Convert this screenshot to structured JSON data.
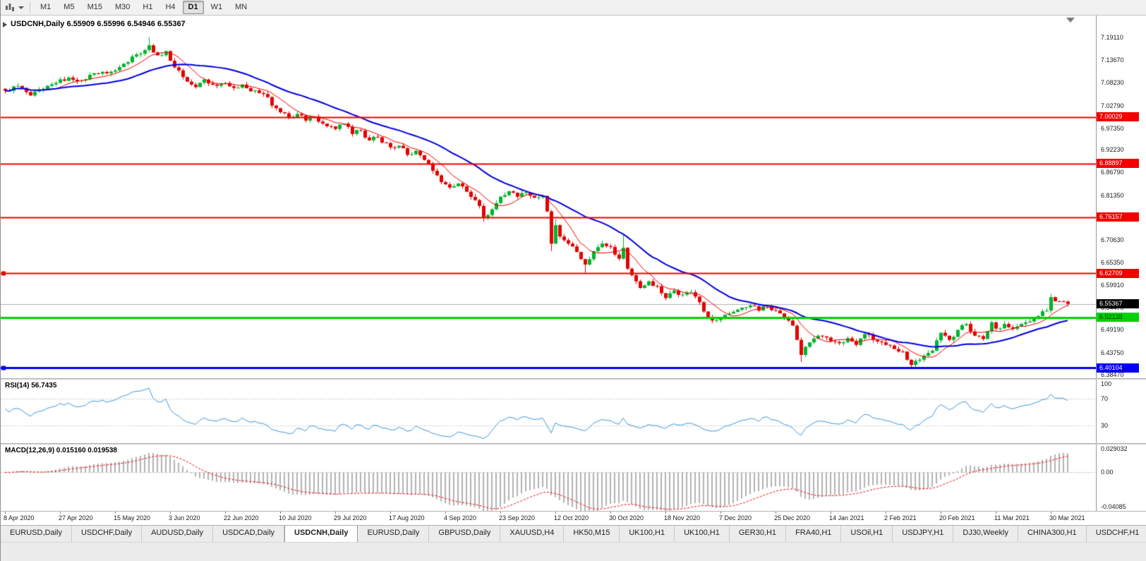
{
  "toolbar": {
    "timeframes": [
      "M1",
      "M5",
      "M15",
      "M30",
      "H1",
      "H4",
      "D1",
      "W1",
      "MN"
    ],
    "active_timeframe": "D1"
  },
  "chart": {
    "symbol_line": "USDCNH,Daily  6.55909 6.55996 6.54946 6.55367",
    "symbol": "USDCNH",
    "period": "Daily",
    "open": "6.55909",
    "high": "6.55996",
    "low": "6.54946",
    "close": "6.55367"
  },
  "indicators": {
    "rsi": {
      "label": "RSI(14) 56.7435",
      "name": "RSI",
      "period": 14,
      "value": "56.7435",
      "levels": [
        100,
        70,
        30
      ],
      "axis_labels": [
        "100",
        "70",
        "30"
      ],
      "line_color": "#3c9bdc"
    },
    "macd": {
      "label": "MACD(12,26,9) 0.015160 0.019538",
      "name": "MACD",
      "params": "12,26,9",
      "values": [
        "0.015160",
        "0.019538"
      ],
      "axis_labels": [
        "0.029032",
        "0.00",
        "-0.04085"
      ],
      "axis_values": [
        0.029032,
        0,
        -0.04085
      ],
      "hist_color": "#b2b2b2",
      "signal_color": "#ee1111"
    }
  },
  "chart_data": {
    "type": "candlestick",
    "symbol": "USDCNH",
    "timeframe": "Daily",
    "num_candles": 252,
    "candles_per_x_label": 13,
    "x_labels": [
      "8 Apr 2020",
      "27 Apr 2020",
      "15 May 2020",
      "3 Jun 2020",
      "22 Jun 2020",
      "10 Jul 2020",
      "29 Jul 2020",
      "17 Aug 2020",
      "4 Sep 2020",
      "23 Sep 2020",
      "12 Oct 2020",
      "30 Oct 2020",
      "18 Nov 2020",
      "7 Dec 2020",
      "25 Dec 2020",
      "14 Jan 2021",
      "2 Feb 2021",
      "20 Feb 2021",
      "11 Mar 2021",
      "30 Mar 2021"
    ],
    "y_ticks": [
      "7.19110",
      "7.13670",
      "7.08230",
      "7.02790",
      "6.97350",
      "6.92230",
      "6.86790",
      "6.81350",
      "6.75910",
      "6.70630",
      "6.65350",
      "6.59910",
      "6.54470",
      "6.49190",
      "6.43750",
      "6.38470"
    ],
    "close_anchors": [
      [
        0,
        7.063
      ],
      [
        3,
        7.075
      ],
      [
        6,
        7.052
      ],
      [
        9,
        7.068
      ],
      [
        12,
        7.082
      ],
      [
        15,
        7.095
      ],
      [
        18,
        7.088
      ],
      [
        21,
        7.105
      ],
      [
        24,
        7.105
      ],
      [
        26,
        7.112
      ],
      [
        28,
        7.128
      ],
      [
        30,
        7.145
      ],
      [
        32,
        7.152
      ],
      [
        34,
        7.172
      ],
      [
        36,
        7.148
      ],
      [
        38,
        7.158
      ],
      [
        39,
        7.135
      ],
      [
        41,
        7.112
      ],
      [
        43,
        7.085
      ],
      [
        45,
        7.072
      ],
      [
        47,
        7.09
      ],
      [
        49,
        7.078
      ],
      [
        52,
        7.082
      ],
      [
        54,
        7.07
      ],
      [
        56,
        7.078
      ],
      [
        58,
        7.062
      ],
      [
        60,
        7.058
      ],
      [
        62,
        7.048
      ],
      [
        63,
        7.028
      ],
      [
        65,
        7.012
      ],
      [
        67,
        6.998
      ],
      [
        69,
        7.008
      ],
      [
        71,
        6.992
      ],
      [
        73,
        7.002
      ],
      [
        75,
        6.985
      ],
      [
        78,
        6.972
      ],
      [
        80,
        6.985
      ],
      [
        82,
        6.96
      ],
      [
        84,
        6.968
      ],
      [
        86,
        6.945
      ],
      [
        88,
        6.952
      ],
      [
        91,
        6.928
      ],
      [
        93,
        6.932
      ],
      [
        95,
        6.91
      ],
      [
        97,
        6.92
      ],
      [
        99,
        6.898
      ],
      [
        101,
        6.872
      ],
      [
        103,
        6.845
      ],
      [
        105,
        6.832
      ],
      [
        107,
        6.842
      ],
      [
        109,
        6.822
      ],
      [
        111,
        6.802
      ],
      [
        112,
        6.788
      ],
      [
        113,
        6.76
      ],
      [
        115,
        6.78
      ],
      [
        117,
        6.81
      ],
      [
        119,
        6.823
      ],
      [
        121,
        6.81
      ],
      [
        123,
        6.82
      ],
      [
        125,
        6.808
      ],
      [
        127,
        6.812
      ],
      [
        128,
        6.775
      ],
      [
        129,
        6.698
      ],
      [
        130,
        6.742
      ],
      [
        131,
        6.715
      ],
      [
        133,
        6.698
      ],
      [
        135,
        6.678
      ],
      [
        137,
        6.648
      ],
      [
        139,
        6.68
      ],
      [
        141,
        6.698
      ],
      [
        143,
        6.69
      ],
      [
        145,
        6.662
      ],
      [
        146,
        6.688
      ],
      [
        147,
        6.638
      ],
      [
        149,
        6.608
      ],
      [
        150,
        6.592
      ],
      [
        152,
        6.608
      ],
      [
        154,
        6.596
      ],
      [
        156,
        6.568
      ],
      [
        158,
        6.586
      ],
      [
        160,
        6.576
      ],
      [
        162,
        6.582
      ],
      [
        164,
        6.558
      ],
      [
        166,
        6.522
      ],
      [
        168,
        6.515
      ],
      [
        170,
        6.528
      ],
      [
        172,
        6.535
      ],
      [
        174,
        6.545
      ],
      [
        176,
        6.55
      ],
      [
        178,
        6.538
      ],
      [
        180,
        6.55
      ],
      [
        182,
        6.538
      ],
      [
        184,
        6.52
      ],
      [
        186,
        6.502
      ],
      [
        187,
        6.468
      ],
      [
        188,
        6.432
      ],
      [
        190,
        6.462
      ],
      [
        192,
        6.478
      ],
      [
        195,
        6.465
      ],
      [
        197,
        6.46
      ],
      [
        199,
        6.472
      ],
      [
        201,
        6.456
      ],
      [
        203,
        6.482
      ],
      [
        205,
        6.468
      ],
      [
        208,
        6.456
      ],
      [
        210,
        6.446
      ],
      [
        212,
        6.44
      ],
      [
        214,
        6.408
      ],
      [
        215,
        6.418
      ],
      [
        217,
        6.43
      ],
      [
        219,
        6.442
      ],
      [
        221,
        6.485
      ],
      [
        223,
        6.468
      ],
      [
        225,
        6.492
      ],
      [
        227,
        6.506
      ],
      [
        229,
        6.478
      ],
      [
        231,
        6.47
      ],
      [
        233,
        6.51
      ],
      [
        234,
        6.495
      ],
      [
        236,
        6.506
      ],
      [
        238,
        6.494
      ],
      [
        240,
        6.506
      ],
      [
        242,
        6.512
      ],
      [
        244,
        6.525
      ],
      [
        246,
        6.538
      ],
      [
        247,
        6.57
      ],
      [
        249,
        6.56
      ],
      [
        251,
        6.554
      ]
    ],
    "wick_overrides": {
      "34": {
        "h": 7.191
      },
      "113": {
        "l": 6.75
      },
      "129": {
        "l": 6.68
      },
      "130": {
        "h": 6.756
      },
      "137": {
        "l": 6.628
      },
      "146": {
        "h": 6.72
      },
      "188": {
        "l": 6.415
      },
      "214": {
        "l": 6.401
      },
      "215": {
        "l": 6.404
      },
      "247": {
        "h": 6.578
      }
    },
    "horizontal_lines": [
      {
        "value": 7.00029,
        "label": "7.00029",
        "color": "#f20000",
        "width": 2,
        "text": "#ffffff",
        "handle": false
      },
      {
        "value": 6.88897,
        "label": "6.88897",
        "color": "#f20000",
        "width": 2,
        "text": "#ffffff",
        "handle": false
      },
      {
        "value": 6.76157,
        "label": "6.76157",
        "color": "#f20000",
        "width": 2,
        "text": "#ffffff",
        "handle": false
      },
      {
        "value": 6.62709,
        "label": "6.62709",
        "color": "#f20000",
        "width": 2,
        "text": "#ffffff",
        "handle": true
      },
      {
        "value": 6.52138,
        "label": "6.52138",
        "color": "#00d200",
        "width": 3,
        "text": "#063f06",
        "handle": false
      },
      {
        "value": 6.40104,
        "label": "6.40104",
        "color": "#0000f2",
        "width": 3,
        "text": "#ffffff",
        "handle": true
      }
    ],
    "current_price": {
      "value": 6.55367,
      "label": "6.55367",
      "line_color": "#b0b0b0",
      "badge_bg": "#000000",
      "badge_text": "#ffffff"
    },
    "candle_up_color": "#00b32c",
    "candle_down_color": "#e30000",
    "ma_fast": {
      "period": 8,
      "color": "#f40000"
    },
    "ma_slow": {
      "period": 25,
      "color": "#0000e0"
    }
  },
  "tabs": {
    "active_index": 4,
    "items": [
      "EURUSD,Daily",
      "USDCHF,Daily",
      "AUDUSD,Daily",
      "USDCAD,Daily",
      "USDCNH,Daily",
      "EURUSD,Daily",
      "GBPUSD,Daily",
      "XAUUSD,H4",
      "HK50,M15",
      "UK100,H1",
      "UK100,H1",
      "GER30,H1",
      "FRA40,H1",
      "USOil,H1",
      "USDJPY,H1",
      "DJ30,Weekly",
      "CHINA300,H1",
      "USDCHF,H1"
    ]
  }
}
